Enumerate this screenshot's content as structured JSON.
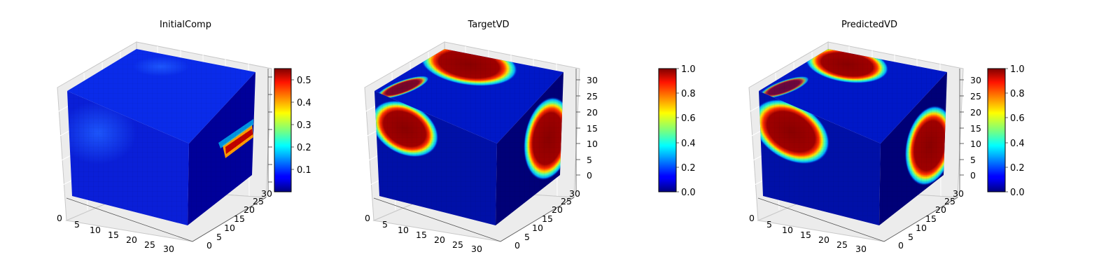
{
  "chart_data": [
    {
      "type": "heatmap",
      "subtype": "3d-voxel-cube",
      "title": "InitialComp",
      "colormap": "jet",
      "x_ticks": [
        "0",
        "5",
        "10",
        "15",
        "20",
        "25",
        "30"
      ],
      "y_ticks": [
        "0",
        "5",
        "10",
        "15",
        "20",
        "25",
        "30"
      ],
      "z_ticks": [],
      "xlim": [
        0,
        32
      ],
      "ylim": [
        0,
        32
      ],
      "zlim": [
        0,
        32
      ],
      "colorbar": {
        "ticks": [
          "0.1",
          "0.2",
          "0.3",
          "0.4",
          "0.5"
        ],
        "range": [
          0.02,
          0.55
        ]
      },
      "grid": true
    },
    {
      "type": "heatmap",
      "subtype": "3d-voxel-cube",
      "title": "TargetVD",
      "colormap": "jet",
      "x_ticks": [
        "0",
        "5",
        "10",
        "15",
        "20",
        "25",
        "30"
      ],
      "y_ticks": [
        "0",
        "5",
        "10",
        "15",
        "20",
        "25",
        "30"
      ],
      "z_ticks": [
        "0",
        "5",
        "10",
        "15",
        "20",
        "25",
        "30"
      ],
      "xlim": [
        0,
        32
      ],
      "ylim": [
        0,
        32
      ],
      "zlim": [
        0,
        32
      ],
      "colorbar": {
        "ticks": [
          "0.0",
          "0.2",
          "0.4",
          "0.6",
          "0.8",
          "1.0"
        ],
        "range": [
          0,
          1
        ]
      },
      "grid": true
    },
    {
      "type": "heatmap",
      "subtype": "3d-voxel-cube",
      "title": "PredictedVD",
      "colormap": "jet",
      "x_ticks": [
        "0",
        "5",
        "10",
        "15",
        "20",
        "25",
        "30"
      ],
      "y_ticks": [
        "0",
        "5",
        "10",
        "15",
        "20",
        "25",
        "30"
      ],
      "z_ticks": [
        "0",
        "5",
        "10",
        "15",
        "20",
        "25",
        "30"
      ],
      "xlim": [
        0,
        32
      ],
      "ylim": [
        0,
        32
      ],
      "zlim": [
        0,
        32
      ],
      "colorbar": {
        "ticks": [
          "0.0",
          "0.2",
          "0.4",
          "0.6",
          "0.8",
          "1.0"
        ],
        "range": [
          0,
          1
        ]
      },
      "grid": true
    }
  ]
}
